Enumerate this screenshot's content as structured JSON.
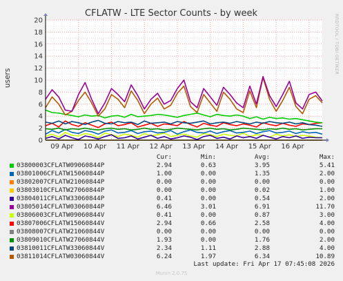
{
  "chart_data": {
    "type": "line",
    "title": "CFLATW - LTE Sector Counts - by week",
    "ylabel": "users",
    "ylim": [
      0,
      20
    ],
    "yticks": [
      0,
      2,
      4,
      6,
      8,
      10,
      12,
      14,
      16,
      18,
      20
    ],
    "xlim": [
      0,
      8.4
    ],
    "xticks": [
      {
        "label": "09 Apr",
        "value": 0.5
      },
      {
        "label": "10 Apr",
        "value": 1.5
      },
      {
        "label": "11 Apr",
        "value": 2.5
      },
      {
        "label": "12 Apr",
        "value": 3.5
      },
      {
        "label": "13 Apr",
        "value": 4.5
      },
      {
        "label": "14 Apr",
        "value": 5.5
      },
      {
        "label": "15 Apr",
        "value": 6.5
      },
      {
        "label": "16 Apr",
        "value": 7.5
      }
    ],
    "grid": true,
    "series": [
      {
        "name": "03800003CFLATW09060844P",
        "color": "#00cc00",
        "cur": "2.94",
        "min": "0.63",
        "avg": "3.95",
        "max": "5.41",
        "values": [
          5.0,
          4.6,
          4.5,
          4.3,
          4.1,
          3.9,
          4.2,
          4.0,
          4.1,
          3.7,
          4.0,
          4.1,
          3.8,
          4.3,
          3.9,
          4.0,
          4.1,
          4.3,
          4.2,
          4.0,
          3.8,
          4.1,
          4.3,
          4.5,
          4.2,
          3.9,
          4.3,
          4.1,
          4.0,
          4.2,
          4.0,
          3.6,
          3.9,
          3.5,
          3.8,
          3.6,
          3.7,
          3.5,
          3.6,
          3.4,
          3.2,
          3.0,
          2.9
        ]
      },
      {
        "name": "03801006CFLATW15060844P",
        "color": "#0066b3",
        "cur": "1.00",
        "min": "0.00",
        "avg": "1.35",
        "max": "2.00",
        "values": [
          1.0,
          1.6,
          1.2,
          1.8,
          1.3,
          1.1,
          1.6,
          1.4,
          1.0,
          1.5,
          1.7,
          1.2,
          1.3,
          1.6,
          1.1,
          1.4,
          1.5,
          1.2,
          1.3,
          1.6,
          1.0,
          1.4,
          1.7,
          1.3,
          1.2,
          1.5,
          1.1,
          1.4,
          1.6,
          1.2,
          1.3,
          1.5,
          1.1,
          1.4,
          1.6,
          1.2,
          1.3,
          1.5,
          1.1,
          1.4,
          1.2,
          1.3,
          1.0
        ]
      },
      {
        "name": "03802007CFLATW21060844P",
        "color": "#ff8000",
        "cur": "0.00",
        "min": "0.00",
        "avg": "0.00",
        "max": "0.00",
        "values": [
          0,
          0,
          0,
          0,
          0,
          0,
          0,
          0,
          0,
          0,
          0,
          0,
          0,
          0,
          0,
          0,
          0,
          0,
          0,
          0,
          0,
          0,
          0,
          0,
          0,
          0,
          0,
          0,
          0,
          0,
          0,
          0,
          0,
          0,
          0,
          0,
          0,
          0,
          0,
          0,
          0,
          0,
          0
        ]
      },
      {
        "name": "03803010CFLATW27060844P",
        "color": "#ffcc00",
        "cur": "0.00",
        "min": "0.00",
        "avg": "0.02",
        "max": "1.00",
        "values": [
          0,
          0,
          0,
          0,
          0,
          0,
          0,
          0,
          0,
          0,
          0,
          0,
          0,
          0,
          0,
          0,
          0,
          0,
          0,
          0,
          0,
          0,
          0,
          0,
          0,
          0,
          0,
          0,
          0,
          0,
          0,
          0,
          0,
          0,
          0,
          0,
          0,
          0,
          0,
          0,
          0,
          0,
          0
        ]
      },
      {
        "name": "03804011CFLATW33060844P",
        "color": "#330099",
        "cur": "0.41",
        "min": "0.00",
        "avg": "0.54",
        "max": "2.00",
        "values": [
          0.3,
          0.6,
          0.2,
          0.8,
          0.4,
          0.1,
          0.7,
          0.5,
          0.2,
          0.6,
          0.9,
          0.3,
          0.4,
          0.7,
          0.2,
          0.5,
          0.8,
          0.3,
          0.6,
          0.2,
          0.4,
          0.7,
          0.5,
          0.1,
          0.6,
          0.8,
          0.3,
          0.5,
          0.2,
          0.7,
          0.4,
          0.6,
          0.3,
          0.8,
          0.5,
          0.2,
          0.6,
          0.4,
          0.7,
          0.3,
          0.5,
          0.4,
          0.4
        ]
      },
      {
        "name": "03805014CFLATW03060844P",
        "color": "#990099",
        "cur": "6.46",
        "min": "3.01",
        "avg": "6.91",
        "max": "11.70",
        "values": [
          6.8,
          8.4,
          7.2,
          5.0,
          4.8,
          7.6,
          9.6,
          6.8,
          4.4,
          6.2,
          8.6,
          7.6,
          6.4,
          9.2,
          7.4,
          5.2,
          6.8,
          7.8,
          6.0,
          6.6,
          8.6,
          10.0,
          6.4,
          5.4,
          8.6,
          7.2,
          5.8,
          8.8,
          7.6,
          6.2,
          5.4,
          9.0,
          6.0,
          10.6,
          7.4,
          5.6,
          7.6,
          9.8,
          6.2,
          5.2,
          7.6,
          8.0,
          6.5
        ]
      },
      {
        "name": "03806003CFLATW09060844V",
        "color": "#ccff00",
        "cur": "0.41",
        "min": "0.00",
        "avg": "0.87",
        "max": "3.00",
        "values": [
          0.6,
          1.0,
          0.5,
          1.3,
          0.8,
          0.7,
          1.1,
          0.9,
          0.4,
          1.2,
          0.9,
          0.6,
          1.0,
          0.8,
          0.5,
          1.1,
          0.7,
          0.9,
          1.2,
          0.6,
          0.8,
          1.0,
          0.7,
          0.5,
          1.1,
          0.9,
          0.6,
          1.0,
          0.8,
          0.7,
          1.2,
          0.6,
          0.9,
          0.8,
          0.5,
          1.0,
          0.7,
          0.9,
          0.6,
          0.8,
          0.7,
          0.5,
          0.4
        ]
      },
      {
        "name": "03807006CFLATW15060844V",
        "color": "#ff0000",
        "cur": "2.94",
        "min": "0.66",
        "avg": "2.58",
        "max": "4.00",
        "values": [
          2.4,
          2.8,
          2.2,
          3.2,
          2.6,
          2.3,
          2.9,
          2.5,
          2.1,
          2.7,
          3.0,
          2.4,
          2.6,
          2.9,
          2.2,
          2.5,
          2.8,
          2.3,
          2.7,
          2.6,
          2.4,
          3.1,
          2.6,
          2.2,
          2.8,
          2.5,
          2.3,
          2.9,
          2.6,
          2.4,
          2.7,
          2.5,
          2.2,
          2.9,
          2.6,
          2.4,
          2.8,
          2.5,
          2.3,
          2.7,
          2.6,
          2.8,
          2.9
        ]
      },
      {
        "name": "03808007CFLATW21060844V",
        "color": "#808080",
        "cur": "0.00",
        "min": "0.00",
        "avg": "0.00",
        "max": "0.00",
        "values": [
          0,
          0,
          0,
          0,
          0,
          0,
          0,
          0,
          0,
          0,
          0,
          0,
          0,
          0,
          0,
          0,
          0,
          0,
          0,
          0,
          0,
          0,
          0,
          0,
          0,
          0,
          0,
          0,
          0,
          0,
          0,
          0,
          0,
          0,
          0,
          0,
          0,
          0,
          0,
          0,
          0,
          0,
          0
        ]
      },
      {
        "name": "03809010CFLATW27060844V",
        "color": "#008f00",
        "cur": "1.93",
        "min": "0.00",
        "avg": "1.76",
        "max": "2.00",
        "values": [
          1.9,
          1.8,
          2.0,
          1.7,
          1.9,
          1.8,
          2.0,
          1.8,
          1.7,
          1.9,
          2.0,
          1.8,
          1.9,
          1.7,
          1.8,
          2.0,
          1.8,
          1.9,
          1.7,
          1.8,
          2.0,
          1.9,
          1.8,
          1.7,
          1.9,
          2.0,
          1.8,
          1.9,
          1.7,
          1.8,
          2.0,
          1.9,
          1.8,
          1.7,
          1.9,
          1.8,
          2.0,
          1.8,
          1.9,
          1.7,
          1.8,
          1.9,
          1.9
        ]
      },
      {
        "name": "03810011CFLATW33060844V",
        "color": "#00487d",
        "cur": "2.34",
        "min": "1.11",
        "avg": "2.88",
        "max": "4.00",
        "values": [
          3.0,
          2.8,
          3.2,
          2.7,
          3.1,
          2.9,
          2.6,
          3.0,
          3.3,
          2.8,
          2.7,
          3.1,
          2.9,
          3.0,
          2.6,
          3.2,
          2.8,
          2.9,
          3.0,
          2.7,
          3.1,
          2.9,
          2.8,
          3.0,
          3.2,
          2.7,
          2.9,
          3.0,
          2.8,
          3.1,
          2.9,
          2.7,
          3.0,
          2.8,
          3.1,
          2.9,
          2.8,
          3.0,
          2.7,
          2.9,
          2.6,
          2.5,
          2.3
        ]
      },
      {
        "name": "03811014CFLATW03060844V",
        "color": "#b35a00",
        "cur": "6.24",
        "min": "1.97",
        "avg": "6.34",
        "max": "10.89",
        "values": [
          5.4,
          7.2,
          6.0,
          4.2,
          4.8,
          6.6,
          8.0,
          6.2,
          4.0,
          5.2,
          7.6,
          6.8,
          5.4,
          8.2,
          6.6,
          4.4,
          6.0,
          7.0,
          5.2,
          5.8,
          7.8,
          9.0,
          5.6,
          4.6,
          7.6,
          6.2,
          4.8,
          8.0,
          6.8,
          5.2,
          4.6,
          8.2,
          5.4,
          10.4,
          6.8,
          4.8,
          6.6,
          8.8,
          5.6,
          4.4,
          6.8,
          7.4,
          6.2
        ]
      }
    ]
  },
  "legend": {
    "cur": "Cur:",
    "min": "Min:",
    "avg": "Avg:",
    "max": "Max:"
  },
  "footer": {
    "last_update": "Last update: Fri Apr 17 07:45:08 2026"
  },
  "side_text": "RRDTOOL / TOBI OETIKER",
  "munin": "Munin 2.0.75",
  "colors": {
    "background": "#f0f0f0",
    "plot_bg": "#ffffff",
    "grid_major": "#ff9c9c",
    "grid_minor": "#e0e0e0"
  }
}
